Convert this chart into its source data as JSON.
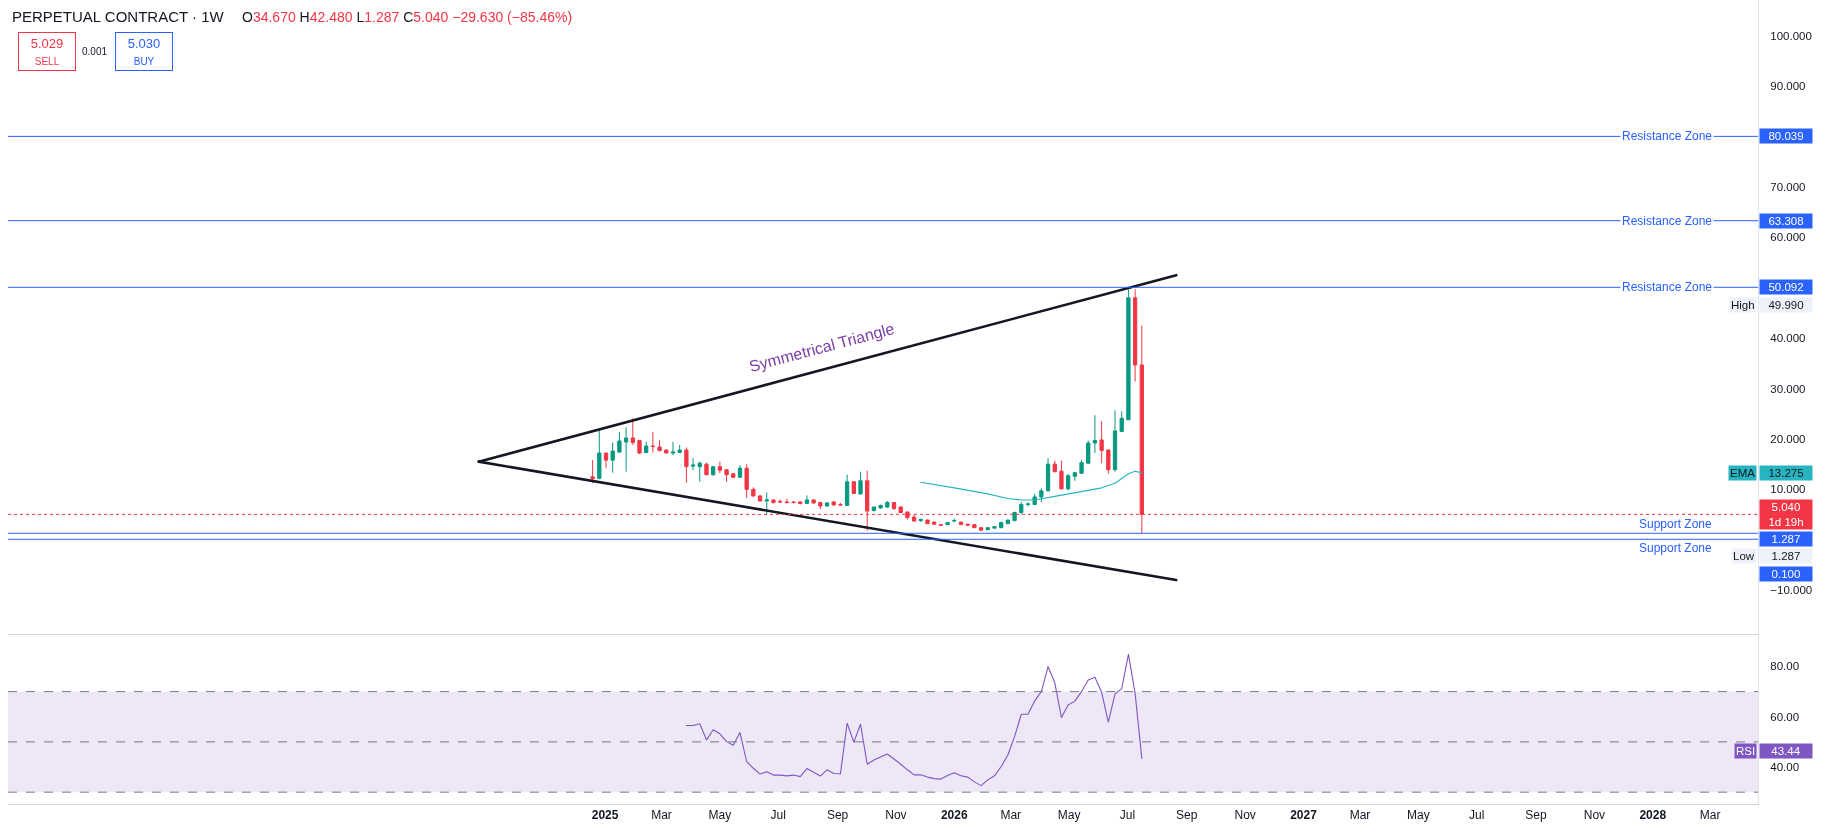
{
  "chart_data": [
    {
      "type": "candlestick",
      "title": "PERPETUAL CONTRACT · 1W",
      "subtitle": "O34.670 H42.480 L1.287 C5.040 −29.630 (−85.46%)",
      "x": [
        "2024-12-19",
        "2024-12-26",
        "2025-01-02",
        "2025-01-09",
        "2025-01-16",
        "2025-01-23",
        "2025-01-30",
        "2025-02-06",
        "2025-02-13",
        "2025-02-20",
        "2025-02-27",
        "2025-03-06",
        "2025-03-13",
        "2025-03-20",
        "2025-03-27",
        "2025-04-03",
        "2025-04-10",
        "2025-04-17",
        "2025-04-24",
        "2025-05-01",
        "2025-05-08",
        "2025-05-15",
        "2025-05-22",
        "2025-05-29",
        "2025-06-05",
        "2025-06-12",
        "2025-06-19",
        "2025-06-26",
        "2025-07-03",
        "2025-07-10",
        "2025-07-17",
        "2025-07-24",
        "2025-07-31",
        "2025-08-07",
        "2025-08-14",
        "2025-08-21",
        "2025-08-28",
        "2025-09-04",
        "2025-09-11",
        "2025-09-18",
        "2025-09-25",
        "2025-10-02",
        "2025-10-09",
        "2025-10-16",
        "2025-10-23",
        "2025-10-30",
        "2025-11-06",
        "2025-11-13",
        "2025-11-20",
        "2025-11-27",
        "2025-12-04",
        "2025-12-11",
        "2025-12-18",
        "2025-12-25",
        "2026-01-01",
        "2026-01-08",
        "2026-01-15",
        "2026-01-22",
        "2026-01-29",
        "2026-02-05",
        "2026-02-12",
        "2026-02-19",
        "2026-02-26",
        "2026-03-05",
        "2026-03-12",
        "2026-03-19",
        "2026-03-26",
        "2026-04-02",
        "2026-04-09",
        "2026-04-16",
        "2026-04-23",
        "2026-04-30",
        "2026-05-07",
        "2026-05-14",
        "2026-05-21",
        "2026-05-28",
        "2026-06-04",
        "2026-06-11",
        "2026-06-18",
        "2026-06-25",
        "2026-07-02",
        "2026-07-09",
        "2026-07-16"
      ],
      "ohlc": [
        [
          12.5,
          15.8,
          11.2,
          12.1
        ],
        [
          12.2,
          21.8,
          12.0,
          17.2
        ],
        [
          17.2,
          17.3,
          14.2,
          15.8
        ],
        [
          15.8,
          19.3,
          13.3,
          17.6
        ],
        [
          17.4,
          21.4,
          17.2,
          19.6
        ],
        [
          19.4,
          22.3,
          13.5,
          20.2
        ],
        [
          20.2,
          24.1,
          18.8,
          19.3
        ],
        [
          19.7,
          19.8,
          17.0,
          17.2
        ],
        [
          17.3,
          19.5,
          17.2,
          18.6
        ],
        [
          18.6,
          21.4,
          17.3,
          18.5
        ],
        [
          18.4,
          19.8,
          17.5,
          17.7
        ],
        [
          17.8,
          17.9,
          17.2,
          17.2
        ],
        [
          17.2,
          19.4,
          16.8,
          17.4
        ],
        [
          17.3,
          18.8,
          17.2,
          17.8
        ],
        [
          17.8,
          18.3,
          11.3,
          14.5
        ],
        [
          14.6,
          16.2,
          13.8,
          14.8
        ],
        [
          14.5,
          15.5,
          11.5,
          15.2
        ],
        [
          15.0,
          15.3,
          12.8,
          12.9
        ],
        [
          12.9,
          14.6,
          12.7,
          14.5
        ],
        [
          14.5,
          15.5,
          13.2,
          13.8
        ],
        [
          13.9,
          14.0,
          11.5,
          12.9
        ],
        [
          13.1,
          13.1,
          12.2,
          12.4
        ],
        [
          12.4,
          14.8,
          12.4,
          14.2
        ],
        [
          14.2,
          15.0,
          8.3,
          10.0
        ],
        [
          10.0,
          10.4,
          8.5,
          8.7
        ],
        [
          8.7,
          8.9,
          7.6,
          7.7
        ],
        [
          7.7,
          9.4,
          5.1,
          7.9
        ],
        [
          7.9,
          8.0,
          7.2,
          7.4
        ],
        [
          7.6,
          8.0,
          7.4,
          7.5
        ],
        [
          7.5,
          8.1,
          7.2,
          7.4
        ],
        [
          7.5,
          7.6,
          7.2,
          7.4
        ],
        [
          7.5,
          7.6,
          7.0,
          7.2
        ],
        [
          7.2,
          8.8,
          7.2,
          7.9
        ],
        [
          7.9,
          8.0,
          7.2,
          7.3
        ],
        [
          7.4,
          7.4,
          6.1,
          6.7
        ],
        [
          6.7,
          7.5,
          6.6,
          7.3
        ],
        [
          7.5,
          7.7,
          6.8,
          6.9
        ],
        [
          7.0,
          7.3,
          6.8,
          6.9
        ],
        [
          6.8,
          12.9,
          6.7,
          11.5
        ],
        [
          11.5,
          11.6,
          9.1,
          9.2
        ],
        [
          9.1,
          13.5,
          9.0,
          11.7
        ],
        [
          11.7,
          13.7,
          1.8,
          5.7
        ],
        [
          5.8,
          6.6,
          5.6,
          6.5
        ],
        [
          6.3,
          7.0,
          6.2,
          6.8
        ],
        [
          6.5,
          7.7,
          6.3,
          7.4
        ],
        [
          7.4,
          7.5,
          5.9,
          6.2
        ],
        [
          6.5,
          6.6,
          5.3,
          5.4
        ],
        [
          5.5,
          5.6,
          4.0,
          4.4
        ],
        [
          4.5,
          5.1,
          3.6,
          3.7
        ],
        [
          3.8,
          4.2,
          3.5,
          4.0
        ],
        [
          3.9,
          4.0,
          3.2,
          3.2
        ],
        [
          3.5,
          3.6,
          3.0,
          3.1
        ],
        [
          3.0,
          3.1,
          2.8,
          2.9
        ],
        [
          3.0,
          3.5,
          2.9,
          3.4
        ],
        [
          3.7,
          4.2,
          3.5,
          3.8
        ],
        [
          3.5,
          3.6,
          3.0,
          3.0
        ],
        [
          3.1,
          3.1,
          2.8,
          2.9
        ],
        [
          3.0,
          3.1,
          2.3,
          2.4
        ],
        [
          2.4,
          2.5,
          1.7,
          1.9
        ],
        [
          2.0,
          2.4,
          1.9,
          2.4
        ],
        [
          2.3,
          2.7,
          2.3,
          2.6
        ],
        [
          2.4,
          3.6,
          2.3,
          3.4
        ],
        [
          3.2,
          4.0,
          3.1,
          3.9
        ],
        [
          3.8,
          5.6,
          3.7,
          5.4
        ],
        [
          5.4,
          7.5,
          5.1,
          7.0
        ],
        [
          7.0,
          7.4,
          6.6,
          7.1
        ],
        [
          7.0,
          9.1,
          6.9,
          8.5
        ],
        [
          8.5,
          10.2,
          7.4,
          9.7
        ],
        [
          9.7,
          16.2,
          9.6,
          15.0
        ],
        [
          15.0,
          15.7,
          13.4,
          13.5
        ],
        [
          13.6,
          15.7,
          10.0,
          10.1
        ],
        [
          10.1,
          13.1,
          9.8,
          12.7
        ],
        [
          12.6,
          13.5,
          11.7,
          13.3
        ],
        [
          13.2,
          15.8,
          13.1,
          15.3
        ],
        [
          15.2,
          19.7,
          15.0,
          19.2
        ],
        [
          19.2,
          24.7,
          17.2,
          19.7
        ],
        [
          19.8,
          23.5,
          15.2,
          17.7
        ],
        [
          17.8,
          17.9,
          13.1,
          13.9
        ],
        [
          13.9,
          25.7,
          13.5,
          21.6
        ],
        [
          21.5,
          25.5,
          21.5,
          24.1
        ],
        [
          23.8,
          49.99,
          23.8,
          48.0
        ],
        [
          48.0,
          49.7,
          31.4,
          34.67
        ],
        [
          34.67,
          42.48,
          1.287,
          5.04
        ]
      ],
      "colors": [
        "#f23645",
        "#089981",
        "#f23645",
        "#089981",
        "#089981",
        "#089981",
        "#f23645",
        "#f23645",
        "#089981",
        "#f23645",
        "#f23645",
        "#f23645",
        "#089981",
        "#089981",
        "#f23645",
        "#089981",
        "#089981",
        "#f23645",
        "#089981",
        "#f23645",
        "#f23645",
        "#f23645",
        "#089981",
        "#f23645",
        "#f23645",
        "#f23645",
        "#089981",
        "#f23645",
        "#f23645",
        "#f23645",
        "#f23645",
        "#f23645",
        "#089981",
        "#f23645",
        "#f23645",
        "#089981",
        "#f23645",
        "#f23645",
        "#089981",
        "#f23645",
        "#089981",
        "#f23645",
        "#089981",
        "#089981",
        "#089981",
        "#f23645",
        "#f23645",
        "#f23645",
        "#f23645",
        "#089981",
        "#f23645",
        "#f23645",
        "#f23645",
        "#089981",
        "#089981",
        "#f23645",
        "#f23645",
        "#f23645",
        "#f23645",
        "#089981",
        "#089981",
        "#089981",
        "#089981",
        "#089981",
        "#089981",
        "#089981",
        "#089981",
        "#089981",
        "#089981",
        "#f23645",
        "#f23645",
        "#089981",
        "#089981",
        "#089981",
        "#089981",
        "#089981",
        "#f23645",
        "#f23645",
        "#089981",
        "#089981",
        "#089981",
        "#f23645",
        "#f23645"
      ],
      "series": [
        {
          "type": "line",
          "name": "EMA",
          "color": "#26b5c0",
          "x": [
            "2025-11-27",
            "2026-01-01",
            "2026-02-05",
            "2026-02-26",
            "2026-03-12",
            "2026-03-26",
            "2026-04-16",
            "2026-05-21",
            "2026-06-04",
            "2026-06-18",
            "2026-07-02",
            "2026-07-09",
            "2026-07-16"
          ],
          "values": [
            11.4,
            10.3,
            9.1,
            8.2,
            7.9,
            7.9,
            8.6,
            9.8,
            10.3,
            11.2,
            13.1,
            13.6,
            13.275
          ]
        },
        {
          "type": "line",
          "color": "#131722",
          "x": [
            "2024-08-22",
            "2026-08-21"
          ],
          "values": [
            15.5,
            52.5
          ]
        },
        {
          "type": "line",
          "color": "#131722",
          "x": [
            "2024-08-22",
            "2026-08-21"
          ],
          "values": [
            15.5,
            -8.0
          ]
        }
      ],
      "xlim": [
        "2023-04-18",
        "2028-04-20"
      ],
      "ylim": [
        -18.7,
        107.1
      ],
      "yticks": [
        {
          "value": -10,
          "label": "−10.000"
        },
        {
          "value": 10,
          "label": "10.000"
        },
        {
          "value": 20,
          "label": "20.000"
        },
        {
          "value": 30,
          "label": "30.000"
        },
        {
          "value": 40,
          "label": "40.000"
        },
        {
          "value": 60,
          "label": "60.000"
        },
        {
          "value": 70,
          "label": "70.000"
        },
        {
          "value": 90,
          "label": "90.000"
        },
        {
          "value": 100,
          "label": "100.000"
        }
      ],
      "tick_labels": "y",
      "ref_lines": [
        {
          "axis": "y",
          "value": 80.039,
          "label": "Resistance Zone",
          "color": "#2962ff"
        },
        {
          "axis": "y",
          "value": 63.308,
          "label": "Resistance Zone",
          "color": "#2962ff"
        },
        {
          "axis": "y",
          "value": 50.092,
          "label": "Resistance Zone",
          "color": "#2962ff"
        },
        {
          "axis": "y",
          "value": 5.04,
          "label": "1d 19h",
          "color": "#f23645",
          "line_style": "dotted"
        },
        {
          "axis": "y",
          "value": 1.287,
          "label": "Support Zone",
          "color": "#2962ff"
        },
        {
          "axis": "y",
          "value": 0.1,
          "label": "Support Zone",
          "color": "#2962ff"
        }
      ],
      "annotations": [
        "5.029",
        "SELL",
        "0.001",
        "5.030",
        "BUY",
        "80.039",
        "63.308",
        "50.092",
        "5.040",
        "1.287",
        "0.100",
        "13.275",
        "High 49.990",
        "Low 1.287",
        "Symmetrical Triangle"
      ],
      "grid": false,
      "legend": "right"
    },
    {
      "type": "line",
      "series": [
        {
          "name": "RSI",
          "color": "#7e57c2",
          "x": [
            "2025-03-27",
            "2025-04-03",
            "2025-04-10",
            "2025-04-17",
            "2025-04-24",
            "2025-05-01",
            "2025-05-08",
            "2025-05-15",
            "2025-05-22",
            "2025-05-29",
            "2025-06-05",
            "2025-06-12",
            "2025-06-19",
            "2025-06-26",
            "2025-07-03",
            "2025-07-10",
            "2025-07-17",
            "2025-07-24",
            "2025-07-31",
            "2025-08-07",
            "2025-08-14",
            "2025-08-21",
            "2025-08-28",
            "2025-09-04",
            "2025-09-11",
            "2025-09-18",
            "2025-09-25",
            "2025-10-02",
            "2025-10-09",
            "2025-10-16",
            "2025-10-23",
            "2025-10-30",
            "2025-11-06",
            "2025-11-13",
            "2025-11-20",
            "2025-11-27",
            "2025-12-04",
            "2025-12-11",
            "2025-12-18",
            "2025-12-25",
            "2026-01-01",
            "2026-01-08",
            "2026-01-15",
            "2026-01-22",
            "2026-01-29",
            "2026-02-05",
            "2026-02-12",
            "2026-02-19",
            "2026-02-26",
            "2026-03-05",
            "2026-03-12",
            "2026-03-19",
            "2026-03-26",
            "2026-04-02",
            "2026-04-09",
            "2026-04-16",
            "2026-04-23",
            "2026-04-30",
            "2026-05-07",
            "2026-05-14",
            "2026-05-21",
            "2026-05-28",
            "2026-06-04",
            "2026-06-11",
            "2026-06-18",
            "2026-06-25",
            "2026-07-02",
            "2026-07-09",
            "2026-07-16"
          ],
          "values": [
            56.5,
            56.5,
            57.2,
            50.8,
            54.8,
            53.2,
            50.1,
            48.7,
            53.7,
            42.2,
            39.5,
            37.2,
            38.1,
            36.8,
            36.8,
            36.5,
            36.8,
            36.2,
            39.4,
            37.9,
            36.4,
            38.9,
            37.4,
            37.3,
            57.4,
            49.9,
            57.0,
            41.1,
            42.8,
            44.0,
            45.2,
            43.2,
            41.1,
            38.9,
            36.9,
            36.9,
            36.0,
            35.4,
            35.2,
            36.6,
            37.7,
            36.5,
            36.0,
            34.1,
            32.6,
            34.9,
            36.5,
            40.2,
            44.8,
            52.1,
            61.0,
            61.0,
            66.3,
            70.0,
            79.9,
            73.6,
            59.7,
            64.7,
            66.2,
            70.0,
            74.6,
            75.7,
            69.7,
            57.9,
            69.1,
            71.2,
            84.8,
            69.3,
            43.44
          ]
        }
      ],
      "xlim": [
        "2023-04-18",
        "2028-04-20"
      ],
      "xticks": [
        {
          "value": "2025-01-01",
          "label": "2025"
        },
        {
          "value": "2025-03-01",
          "label": "Mar"
        },
        {
          "value": "2025-05-01",
          "label": "May"
        },
        {
          "value": "2025-07-01",
          "label": "Jul"
        },
        {
          "value": "2025-09-01",
          "label": "Sep"
        },
        {
          "value": "2025-11-01",
          "label": "Nov"
        },
        {
          "value": "2026-01-01",
          "label": "2026"
        },
        {
          "value": "2026-03-01",
          "label": "Mar"
        },
        {
          "value": "2026-05-01",
          "label": "May"
        },
        {
          "value": "2026-07-01",
          "label": "Jul"
        },
        {
          "value": "2026-09-01",
          "label": "Sep"
        },
        {
          "value": "2026-11-01",
          "label": "Nov"
        },
        {
          "value": "2027-01-01",
          "label": "2027"
        },
        {
          "value": "2027-03-01",
          "label": "Mar"
        },
        {
          "value": "2027-05-01",
          "label": "May"
        },
        {
          "value": "2027-07-01",
          "label": "Jul"
        },
        {
          "value": "2027-09-01",
          "label": "Sep"
        },
        {
          "value": "2027-11-01",
          "label": "Nov"
        },
        {
          "value": "2028-01-01",
          "label": "2028"
        },
        {
          "value": "2028-03-01",
          "label": "Mar"
        }
      ],
      "ylim": [
        25.3,
        92.1
      ],
      "yticks": [
        {
          "value": 40,
          "label": "40.00"
        },
        {
          "value": 60,
          "label": "60.00"
        },
        {
          "value": 80,
          "label": "80.00"
        }
      ],
      "ref_lines": [
        {
          "axis": "y",
          "value": 70,
          "color": "#787b86",
          "line_style": "dashed"
        },
        {
          "axis": "y",
          "value": 50,
          "color": "#787b86",
          "line_style": "dashed"
        },
        {
          "axis": "y",
          "value": 30,
          "color": "#787b86",
          "line_style": "dashed"
        }
      ],
      "bands": [
        {
          "axis": "y",
          "from": 30,
          "to": 70,
          "color": "#ede7f6"
        }
      ],
      "annotations": [
        "43.44"
      ],
      "grid": false,
      "legend": "right"
    }
  ]
}
